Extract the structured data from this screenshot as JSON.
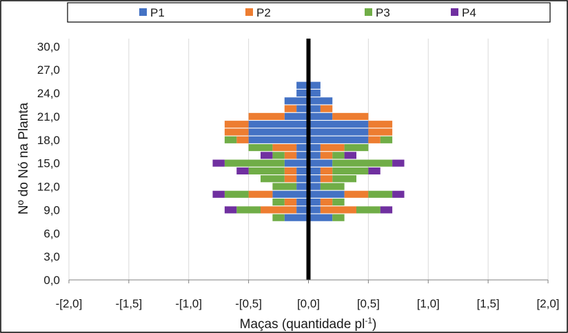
{
  "chart_data": {
    "type": "bar",
    "orientation": "horizontal",
    "stacked": true,
    "symmetric": true,
    "xlabel": "Maças (quantidade pl",
    "xlabel_superscript": "-1",
    "xlabel_suffix": ")",
    "ylabel": "Nº do Nó na Planta",
    "xlim": [
      -2.0,
      2.0
    ],
    "ylim": [
      0,
      31
    ],
    "x_ticks": [
      -2.0,
      -1.5,
      -1.0,
      -0.5,
      0.0,
      0.5,
      1.0,
      1.5,
      2.0
    ],
    "x_tick_labels": [
      "-[2,0]",
      "-[1,5]",
      "-[1,0]",
      "-[0,5]",
      "[0,0]",
      "[0,5]",
      "[1,0]",
      "[1,5]",
      "[2,0]"
    ],
    "y_ticks": [
      0,
      3,
      6,
      9,
      12,
      15,
      18,
      21,
      24,
      27,
      30
    ],
    "y_tick_labels": [
      "0,0",
      "3,0",
      "6,0",
      "9,0",
      "12,0",
      "15,0",
      "18,0",
      "21,0",
      "24,0",
      "27,0",
      "30,0"
    ],
    "grid": "vertical",
    "legend_position": "top",
    "nodes": [
      8,
      9,
      10,
      11,
      12,
      13,
      14,
      15,
      16,
      17,
      18,
      19,
      20,
      21,
      22,
      23,
      24,
      25
    ],
    "series": [
      {
        "name": "P1",
        "color": "#4472C4",
        "values": [
          0.2,
          0.1,
          0.1,
          0.3,
          0.1,
          0.1,
          0.1,
          0.2,
          0.1,
          0.1,
          0.5,
          0.5,
          0.5,
          0.2,
          0.1,
          0.2,
          0.1,
          0.1
        ]
      },
      {
        "name": "P2",
        "color": "#ED7D31",
        "values": [
          0.0,
          0.3,
          0.1,
          0.2,
          0.0,
          0.1,
          0.1,
          0.0,
          0.1,
          0.2,
          0.1,
          0.2,
          0.2,
          0.3,
          0.1,
          0.0,
          0.0,
          0.0
        ]
      },
      {
        "name": "P3",
        "color": "#70AD47",
        "values": [
          0.1,
          0.2,
          0.1,
          0.2,
          0.2,
          0.2,
          0.3,
          0.5,
          0.1,
          0.2,
          0.1,
          0.0,
          0.0,
          0.0,
          0.0,
          0.0,
          0.0,
          0.0
        ]
      },
      {
        "name": "P4",
        "color": "#7030A0",
        "values": [
          0.0,
          0.1,
          0.0,
          0.1,
          0.0,
          0.0,
          0.1,
          0.1,
          0.1,
          0.0,
          0.0,
          0.0,
          0.0,
          0.0,
          0.0,
          0.0,
          0.0,
          0.0
        ]
      }
    ],
    "center_line_color": "#000000",
    "grid_color": "#d9d9d9"
  }
}
